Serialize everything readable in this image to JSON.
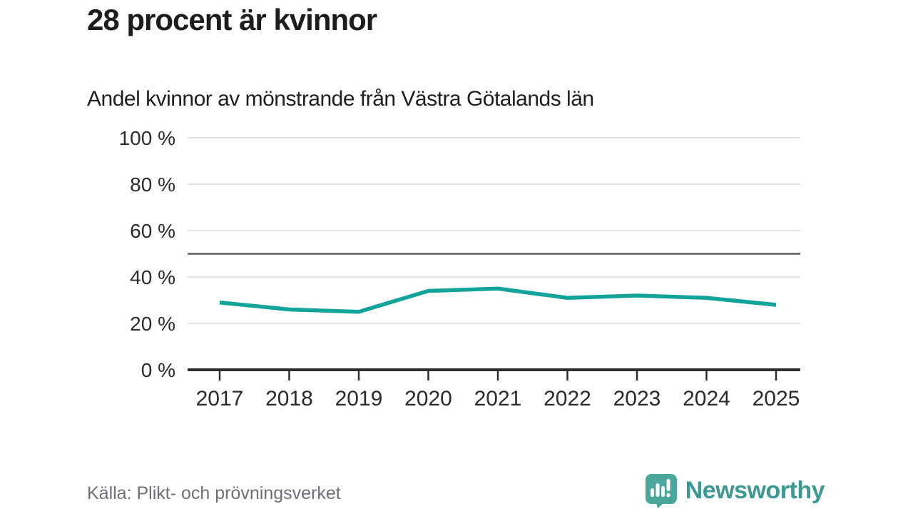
{
  "header": {
    "title": "28 procent är kvinnor",
    "subtitle": "Andel kvinnor av mönstrande från Västra Götalands län"
  },
  "chart_data": {
    "type": "line",
    "title": "28 procent är kvinnor",
    "subtitle": "Andel kvinnor av mönstrande från Västra Götalands län",
    "categories": [
      "2017",
      "2018",
      "2019",
      "2020",
      "2021",
      "2022",
      "2023",
      "2024",
      "2025"
    ],
    "values": [
      29,
      26,
      25,
      34,
      35,
      31,
      32,
      31,
      28
    ],
    "unit": "%",
    "xlabel": "",
    "ylabel": "",
    "ylim": [
      0,
      100
    ],
    "yticks": [
      0,
      20,
      40,
      60,
      80,
      100
    ],
    "ytick_labels": [
      "0 %",
      "20 %",
      "40 %",
      "60 %",
      "80 %",
      "100 %"
    ],
    "reference_line": 50,
    "grid": true,
    "legend": "none"
  },
  "footer": {
    "source": "Källa: Plikt- och prövningsverket",
    "brand": "Newsworthy"
  },
  "colors": {
    "line": "#12a49b",
    "grid": "#e4e4e4",
    "reference_line": "#5b5c63",
    "axis": "#2e2e2e",
    "label": "#2b2b2b",
    "source_text": "#6e7078",
    "brand_teal": "#3a9a91",
    "logo_icon_teal": "#4aa79c"
  }
}
